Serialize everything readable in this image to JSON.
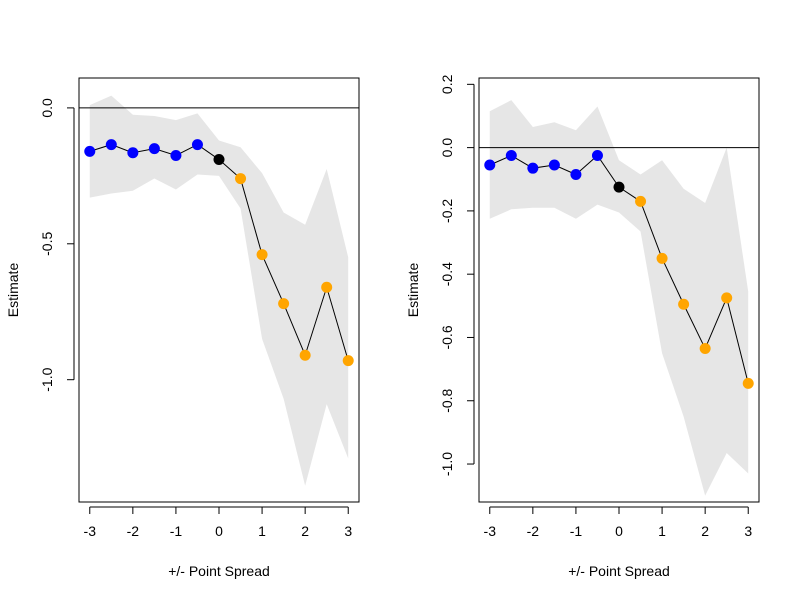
{
  "colors": {
    "band": "#e6e6e6",
    "line": "#000000",
    "negative": "#0000ff",
    "zero": "#000000",
    "positive": "#ffa500",
    "background": "#ffffff"
  },
  "chart_data": [
    {
      "type": "line",
      "title": "",
      "xlabel": "+/- Point Spread",
      "ylabel": "Estimate",
      "x_ticks": [
        -3,
        -2,
        -1,
        0,
        1,
        2,
        3
      ],
      "x_tick_labels": [
        "-3",
        "-2",
        "-1",
        "0",
        "1",
        "2",
        "3"
      ],
      "y_ticks": [
        0.0,
        -0.5,
        -1.0
      ],
      "y_tick_labels": [
        "0.0",
        "-0.5",
        "-1.0"
      ],
      "xlim": [
        -3.25,
        3.25
      ],
      "ylim": [
        -1.45,
        0.11
      ],
      "reference_line_y": 0,
      "grid": false,
      "x": [
        -3,
        -2.5,
        -2,
        -1.5,
        -1,
        -0.5,
        0,
        0.5,
        1,
        1.5,
        2,
        2.5,
        3
      ],
      "values": [
        -0.16,
        -0.135,
        -0.165,
        -0.15,
        -0.175,
        -0.135,
        -0.19,
        -0.26,
        -0.54,
        -0.72,
        -0.91,
        -0.66,
        -0.93
      ],
      "lower": [
        -0.33,
        -0.315,
        -0.305,
        -0.26,
        -0.3,
        -0.245,
        -0.25,
        -0.37,
        -0.85,
        -1.07,
        -1.39,
        -1.09,
        -1.29
      ],
      "upper": [
        0.01,
        0.045,
        -0.025,
        -0.03,
        -0.045,
        -0.02,
        -0.12,
        -0.145,
        -0.24,
        -0.385,
        -0.43,
        -0.225,
        -0.55
      ]
    },
    {
      "type": "line",
      "title": "",
      "xlabel": "+/- Point Spread",
      "ylabel": "Estimate",
      "x_ticks": [
        -3,
        -2,
        -1,
        0,
        1,
        2,
        3
      ],
      "x_tick_labels": [
        "-3",
        "-2",
        "-1",
        "0",
        "1",
        "2",
        "3"
      ],
      "y_ticks": [
        0.2,
        0.0,
        -0.2,
        -0.4,
        -0.6,
        -0.8,
        -1.0
      ],
      "y_tick_labels": [
        "0.2",
        "0.0",
        "-0.2",
        "-0.4",
        "-0.6",
        "-0.8",
        "-1.0"
      ],
      "xlim": [
        -3.25,
        3.25
      ],
      "ylim": [
        -1.12,
        0.22
      ],
      "reference_line_y": 0,
      "grid": false,
      "x": [
        -3,
        -2.5,
        -2,
        -1.5,
        -1,
        -0.5,
        0,
        0.5,
        1,
        1.5,
        2,
        2.5,
        3
      ],
      "values": [
        -0.055,
        -0.025,
        -0.065,
        -0.055,
        -0.085,
        -0.025,
        -0.125,
        -0.17,
        -0.35,
        -0.495,
        -0.635,
        -0.475,
        -0.745
      ],
      "lower": [
        -0.225,
        -0.195,
        -0.19,
        -0.19,
        -0.225,
        -0.18,
        -0.205,
        -0.265,
        -0.65,
        -0.85,
        -1.1,
        -0.965,
        -1.03
      ],
      "upper": [
        0.115,
        0.15,
        0.065,
        0.08,
        0.055,
        0.13,
        -0.04,
        -0.085,
        -0.04,
        -0.13,
        -0.175,
        0.0,
        -0.455
      ]
    }
  ]
}
